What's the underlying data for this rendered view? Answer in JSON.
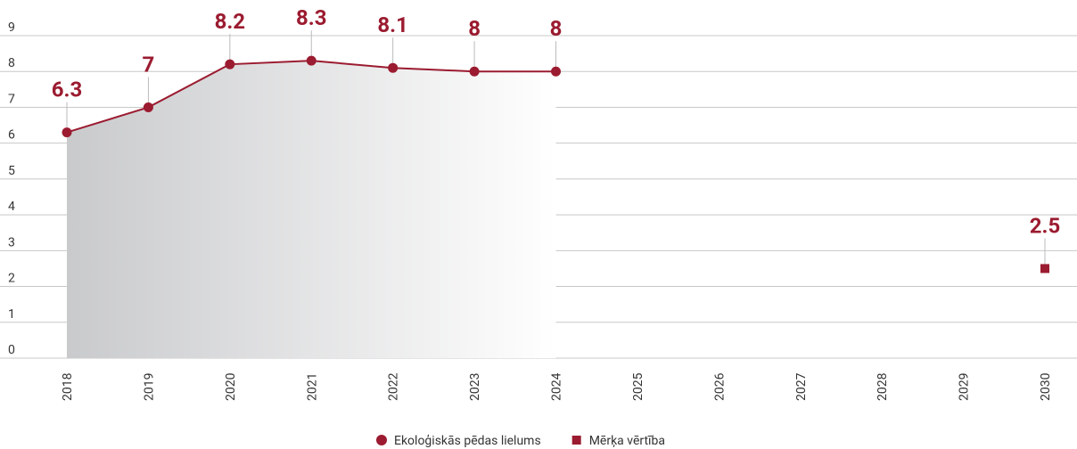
{
  "chart_data": {
    "type": "line",
    "categories": [
      "2018",
      "2019",
      "2020",
      "2021",
      "2022",
      "2023",
      "2024",
      "2025",
      "2026",
      "2027",
      "2028",
      "2029",
      "2030"
    ],
    "series": [
      {
        "name": "Ekoloģiskās pēdas lielums",
        "color": "#9b1b30",
        "marker": "circle",
        "area": true,
        "values": [
          6.3,
          7,
          8.2,
          8.3,
          8.1,
          8,
          8,
          null,
          null,
          null,
          null,
          null,
          null
        ]
      },
      {
        "name": "Mērķa vērtība",
        "color": "#9b1b30",
        "marker": "square",
        "values": [
          null,
          null,
          null,
          null,
          null,
          null,
          null,
          null,
          null,
          null,
          null,
          null,
          2.5
        ]
      }
    ],
    "ylim": [
      0,
      9
    ],
    "yticks": [
      0,
      1,
      2,
      3,
      4,
      5,
      6,
      7,
      8,
      9
    ],
    "grid": true,
    "legend": "bottom"
  }
}
